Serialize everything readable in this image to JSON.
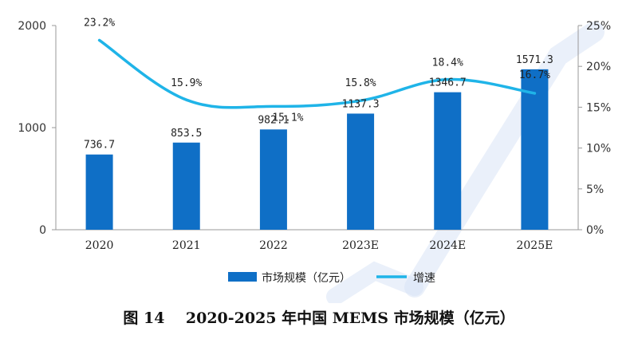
{
  "caption": "图 14    2020-2025 年中国 MEMS 市场规模（亿元）",
  "chart_data": {
    "type": "bar+line",
    "categories": [
      "2020",
      "2021",
      "2022",
      "2023E",
      "2024E",
      "2025E"
    ],
    "series": [
      {
        "name": "市场规模（亿元）",
        "type": "bar",
        "axis": "left",
        "values": [
          736.7,
          853.5,
          982.1,
          1137.3,
          1346.7,
          1571.3
        ],
        "labels": [
          "736.7",
          "853.5",
          "982.1",
          "1137.3",
          "1346.7",
          "1571.3"
        ],
        "color": "#0f6fc6"
      },
      {
        "name": "增速",
        "type": "line",
        "axis": "right",
        "values": [
          23.2,
          15.9,
          15.1,
          15.8,
          18.4,
          16.7
        ],
        "labels": [
          "23.2%",
          "15.9%",
          "15.1%",
          "15.8%",
          "18.4%",
          "16.7%"
        ],
        "color": "#1fb4e8"
      }
    ],
    "y_left": {
      "min": 0,
      "max": 2000,
      "ticks": [
        "0",
        "1000",
        "2000"
      ]
    },
    "y_right": {
      "min": 0,
      "max": 25,
      "ticks": [
        "0%",
        "5%",
        "10%",
        "15%",
        "20%",
        "25%"
      ]
    },
    "legend": "bottom",
    "grid": false
  }
}
